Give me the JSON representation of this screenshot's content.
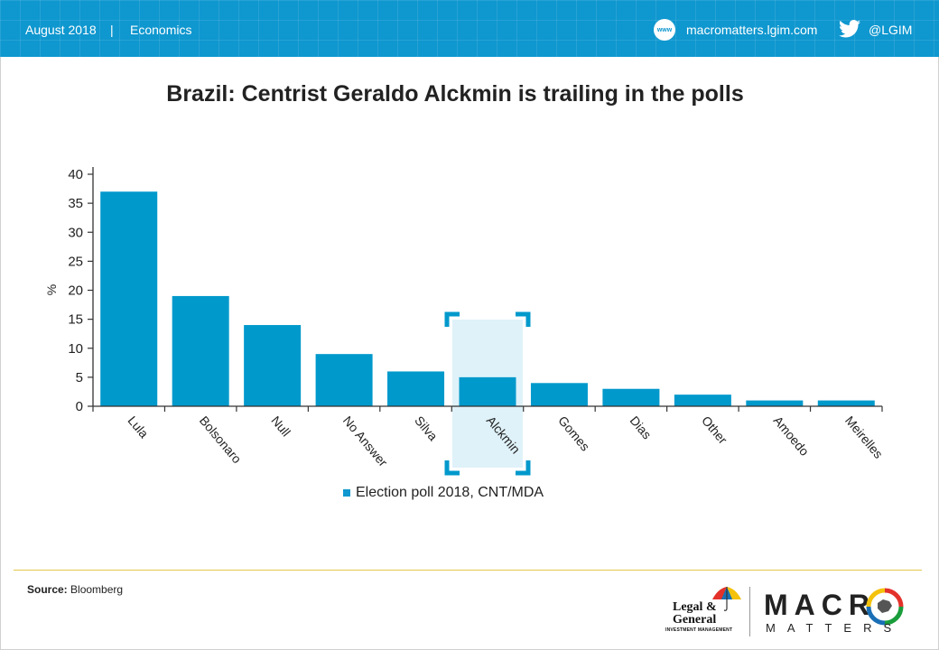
{
  "header": {
    "date": "August 2018",
    "separator": "|",
    "section": "Economics",
    "www_icon_label": "www",
    "website": "macromatters.lgim.com",
    "twitter_handle": "@LGIM",
    "background_color": "#0f97cf"
  },
  "title": "Brazil: Centrist Geraldo Alckmin is trailing in the polls",
  "chart_data": {
    "type": "bar",
    "categories": [
      "Lula",
      "Bolsonaro",
      "Null",
      "No Answer",
      "Silva",
      "Alckmin",
      "Gomes",
      "Dias",
      "Other",
      "Amoedo",
      "Meirelles"
    ],
    "series": [
      {
        "name": "Election poll 2018, CNT/MDA",
        "values": [
          37,
          19,
          14,
          9,
          6,
          5,
          4,
          3,
          2,
          1,
          1
        ],
        "color": "#0099cc"
      }
    ],
    "highlight_category": "Alckmin",
    "highlight_color": "#dff2f9",
    "bracket_color": "#0099cc",
    "ylabel": "%",
    "xlabel": "",
    "ylim": [
      0,
      40
    ],
    "yticks": [
      0,
      5,
      10,
      15,
      20,
      25,
      30,
      35,
      40
    ],
    "grid": false,
    "legend_position": "bottom"
  },
  "footer": {
    "source_label": "Source:",
    "source_value": "Bloomberg",
    "logo_lg_line1": "Legal &",
    "logo_lg_line2": "General",
    "logo_lg_line3": "INVESTMENT MANAGEMENT",
    "logo_mm_word1": "MACR",
    "logo_mm_word2": "MATTERS",
    "rule_color": "#e2c84a"
  }
}
